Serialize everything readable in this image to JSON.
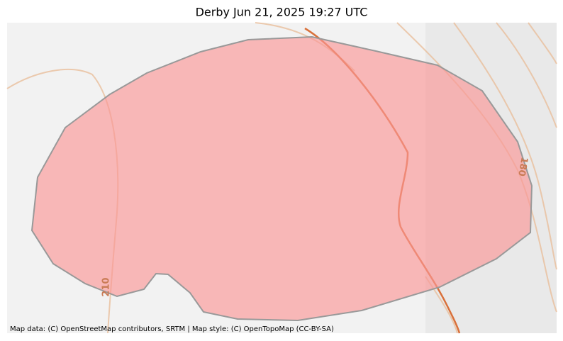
{
  "header": {
    "title": "Derby Jun 21, 2025 19:27 UTC"
  },
  "map": {
    "contour_labels": [
      "210",
      "180"
    ],
    "attribution": "Map data: (C) OpenStreetMap contributors, SRTM | Map style: (C) OpenTopoMap (CC-BY-SA)"
  }
}
